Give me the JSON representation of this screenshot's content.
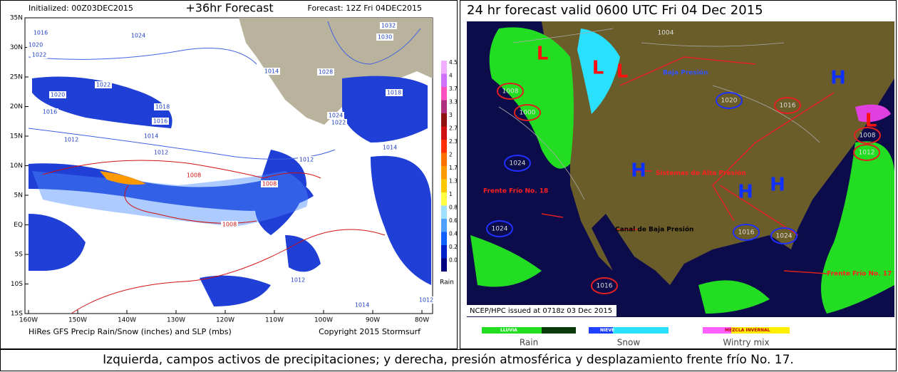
{
  "left_map": {
    "initialized": "Initialized: 00Z03DEC2015",
    "title": "+36hr Forecast",
    "forecast": "Forecast: 12Z Fri 04DEC2015",
    "lat_labels": [
      "35N",
      "30N",
      "25N",
      "20N",
      "15N",
      "10N",
      "5N",
      "EQ",
      "5S",
      "10S",
      "15S"
    ],
    "lon_labels": [
      "160W",
      "150W",
      "140W",
      "130W",
      "120W",
      "110W",
      "100W",
      "90W",
      "80W"
    ],
    "isobar_labels": [
      "1016",
      "1024",
      "1020",
      "1022",
      "1030",
      "1032",
      "1028",
      "1014",
      "1022",
      "1020",
      "1018",
      "1016",
      "1016",
      "1014",
      "1012",
      "1012",
      "1018",
      "1024",
      "1022",
      "1012",
      "1014",
      "1008",
      "1008",
      "1008",
      "1012",
      "1014",
      "1012"
    ],
    "colorbar_labels": [
      "4.5",
      "4",
      "3.7",
      "3.3",
      "3",
      "2.7",
      "2.3",
      "2",
      "1.7",
      "1.3",
      "1",
      "0.8",
      "0.6",
      "0.4",
      "0.2",
      "0.0"
    ],
    "colorbar_unit": "Rain",
    "footer_left": "HiRes GFS Precip Rain/Snow (inches) and SLP (mbs)",
    "footer_right": "Copyright 2015 Stormsurf"
  },
  "right_map": {
    "title": "24 hr forecast valid 0600 UTC Fri 04 Dec 2015",
    "pressure_letters": [
      "L",
      "L",
      "L",
      "H",
      "H",
      "H",
      "H",
      "L"
    ],
    "isobar_labels": [
      "1004",
      "1008",
      "1000",
      "1020",
      "1016",
      "1024",
      "1024",
      "1016",
      "1024",
      "1016",
      "1012",
      "1008"
    ],
    "annotations": [
      "Baja Presión",
      "Sistemas de Alta Presión",
      "Frente Frío No. 18",
      "Canal de Baja Presión",
      "Frente Frío No. 17"
    ],
    "issued": "NCEP/HPC issued at 0718z  03 Dec 2015",
    "legend": [
      {
        "bar": "LLUVIA",
        "label": "Rain"
      },
      {
        "bar": "NIEVE",
        "label": "Snow"
      },
      {
        "bar": "MEZCLA INVERNAL",
        "label": "Wintry mix"
      }
    ]
  },
  "caption": "Izquierda, campos activos de precipitaciones; y derecha, presión atmosférica y desplazamiento frente frío No. 17."
}
